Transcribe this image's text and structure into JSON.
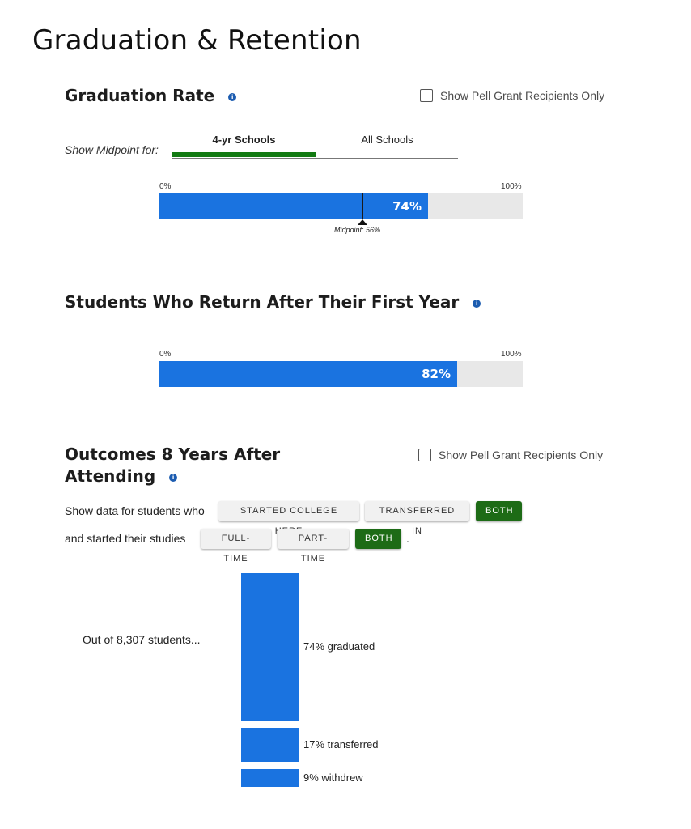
{
  "page_title": "Graduation & Retention",
  "info_glyph": "i",
  "graduation_rate": {
    "title": "Graduation Rate",
    "pell_checkbox_label": "Show Pell Grant Recipients Only",
    "pell_checked": false,
    "midpoint_prompt": "Show Midpoint for:",
    "tabs": [
      {
        "label": "4-yr Schools",
        "active": true
      },
      {
        "label": "All Schools",
        "active": false
      }
    ],
    "scale_min_label": "0%",
    "scale_max_label": "100%",
    "value": 0.74,
    "value_label": "74%",
    "midpoint": 0.56,
    "midpoint_label": "Midpoint: 56%"
  },
  "retention": {
    "title": "Students Who Return After Their First Year",
    "scale_min_label": "0%",
    "scale_max_label": "100%",
    "value": 0.82,
    "value_label": "82%"
  },
  "outcomes": {
    "title_line1": "Outcomes 8 Years After",
    "title_line2": "Attending",
    "pell_checkbox_label": "Show Pell Grant Recipients Only",
    "pell_checked": false,
    "filter1_label": "Show data for students who",
    "filter1_options": [
      {
        "label": "STARTED COLLEGE HERE",
        "active": false
      },
      {
        "label": "TRANSFERRED IN",
        "active": false
      },
      {
        "label": "BOTH",
        "active": true
      }
    ],
    "filter2_label": "and started their studies",
    "filter2_options": [
      {
        "label": "FULL-TIME",
        "active": false
      },
      {
        "label": "PART-TIME",
        "active": false
      },
      {
        "label": "BOTH",
        "active": true
      }
    ],
    "filter2_suffix": ".",
    "intro": "Out of 8,307 students...",
    "breakdown": [
      {
        "share": 0.74,
        "label": "74% graduated"
      },
      {
        "share": 0.17,
        "label": "17% transferred"
      },
      {
        "share": 0.09,
        "label": "9% withdrew"
      }
    ]
  },
  "colors": {
    "bar_fill": "#1a73e0",
    "track": "#e8e8e8",
    "active_green": "#1d6b16",
    "info_blue": "#1c5cb0"
  },
  "icons": [
    "info-icon",
    "checkbox-icon",
    "midpoint-arrow-icon"
  ]
}
